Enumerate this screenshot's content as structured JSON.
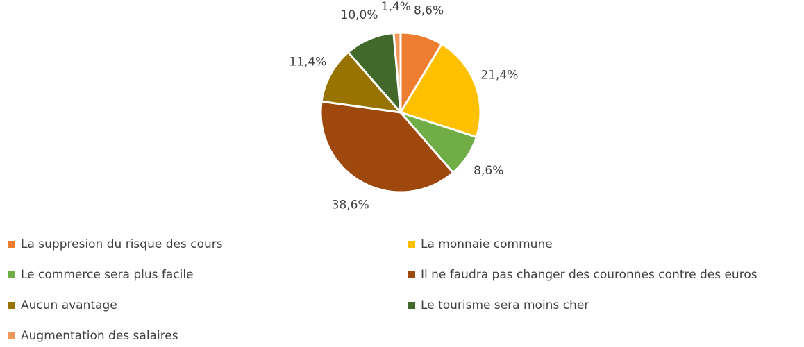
{
  "chart_data": {
    "type": "pie",
    "categories": [
      "La suppresion du risque des cours",
      "La monnaie commune",
      "Le commerce sera plus facile",
      "Il ne faudra pas changer des couronnes contre des euros",
      "Aucun avantage",
      "Le tourisme sera moins cher",
      "Augmentation des salaires"
    ],
    "values": [
      8.6,
      21.4,
      8.6,
      38.6,
      11.4,
      10.0,
      1.4
    ],
    "value_labels": [
      "8,6%",
      "21,4%",
      "8,6%",
      "38,6%",
      "11,4%",
      "10,0%",
      "1,4%"
    ],
    "colors": [
      "#ed7d31",
      "#ffc000",
      "#70ad47",
      "#9e480e",
      "#997300",
      "#43682b",
      "#f1975a"
    ]
  }
}
